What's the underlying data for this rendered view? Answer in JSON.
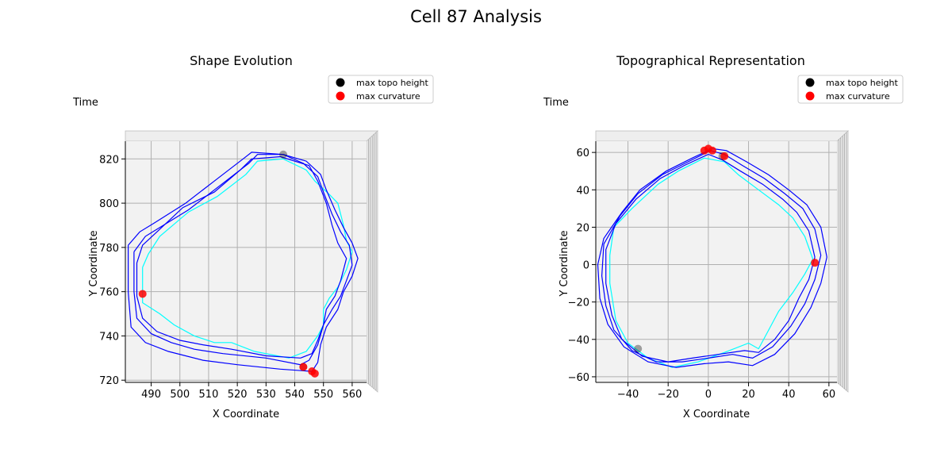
{
  "figure": {
    "title": "Cell 87 Analysis"
  },
  "chart_data": [
    {
      "type": "line",
      "title": "Shape Evolution",
      "xlabel": "X Coordinate",
      "ylabel": "Y Coordinate",
      "zlabel": "Time",
      "xlim": [
        481,
        565
      ],
      "ylim": [
        719,
        828
      ],
      "xticks": [
        490,
        500,
        510,
        520,
        530,
        540,
        550,
        560
      ],
      "yticks": [
        720,
        740,
        760,
        780,
        800,
        820
      ],
      "legend": {
        "placement": "top-right",
        "entries": [
          {
            "label": "max topo height",
            "color": "#000000"
          },
          {
            "label": "max curvature",
            "color": "#ff0000"
          }
        ]
      },
      "series": [
        {
          "color": "#00ffff",
          "points": [
            [
              487,
              771
            ],
            [
              489,
              777
            ],
            [
              493,
              785
            ],
            [
              503,
              796
            ],
            [
              513,
              803
            ],
            [
              523,
              813
            ],
            [
              527,
              819
            ],
            [
              536,
              820
            ],
            [
              544,
              815
            ],
            [
              547,
              810
            ],
            [
              552,
              804
            ],
            [
              555,
              800
            ],
            [
              557,
              790
            ],
            [
              558,
              783
            ],
            [
              560,
              778
            ],
            [
              558,
              770
            ],
            [
              555,
              762
            ],
            [
              552,
              757
            ],
            [
              550,
              752
            ],
            [
              550,
              745
            ],
            [
              548,
              740
            ],
            [
              544,
              733
            ],
            [
              538,
              730
            ],
            [
              526,
              733
            ],
            [
              518,
              737
            ],
            [
              512,
              737
            ],
            [
              505,
              740
            ],
            [
              498,
              745
            ],
            [
              493,
              750
            ],
            [
              487,
              755
            ],
            [
              487,
              765
            ],
            [
              487,
              771
            ]
          ]
        },
        {
          "color": "#0000ff",
          "points": [
            [
              485,
              773
            ],
            [
              487,
              781
            ],
            [
              492,
              787
            ],
            [
              501,
              798
            ],
            [
              512,
              805
            ],
            [
              521,
              815
            ],
            [
              525,
              820
            ],
            [
              535,
              821
            ],
            [
              545,
              817
            ],
            [
              548,
              810
            ],
            [
              551,
              800
            ],
            [
              553,
              790
            ],
            [
              555,
              782
            ],
            [
              558,
              775
            ],
            [
              556,
              765
            ],
            [
              554,
              758
            ],
            [
              551,
              752
            ],
            [
              550,
              745
            ],
            [
              548,
              738
            ],
            [
              546,
              732
            ],
            [
              542,
              730
            ],
            [
              530,
              731
            ],
            [
              518,
              734
            ],
            [
              508,
              736
            ],
            [
              500,
              738
            ],
            [
              492,
              742
            ],
            [
              487,
              748
            ],
            [
              485,
              758
            ],
            [
              485,
              773
            ]
          ]
        },
        {
          "color": "#0000ff",
          "points": [
            [
              484,
              778
            ],
            [
              488,
              785
            ],
            [
              493,
              789
            ],
            [
              503,
              797
            ],
            [
              514,
              808
            ],
            [
              524,
              818
            ],
            [
              527,
              822
            ],
            [
              536,
              822
            ],
            [
              543,
              818
            ],
            [
              548,
              812
            ],
            [
              550,
              805
            ],
            [
              553,
              795
            ],
            [
              556,
              787
            ],
            [
              559,
              781
            ],
            [
              560,
              772
            ],
            [
              558,
              765
            ],
            [
              556,
              758
            ],
            [
              553,
              752
            ],
            [
              550,
              745
            ],
            [
              548,
              736
            ],
            [
              545,
              729
            ],
            [
              542,
              727
            ],
            [
              530,
              730
            ],
            [
              515,
              732
            ],
            [
              505,
              734
            ],
            [
              497,
              737
            ],
            [
              490,
              741
            ],
            [
              485,
              748
            ],
            [
              484,
              760
            ],
            [
              484,
              778
            ]
          ]
        },
        {
          "color": "#0000ff",
          "points": [
            [
              482,
              781
            ],
            [
              486,
              787
            ],
            [
              491,
              791
            ],
            [
              502,
              800
            ],
            [
              512,
              810
            ],
            [
              522,
              820
            ],
            [
              525,
              823
            ],
            [
              536,
              822
            ],
            [
              544,
              819
            ],
            [
              549,
              813
            ],
            [
              551,
              806
            ],
            [
              554,
              797
            ],
            [
              557,
              789
            ],
            [
              560,
              782
            ],
            [
              562,
              775
            ],
            [
              560,
              767
            ],
            [
              557,
              760
            ],
            [
              555,
              752
            ],
            [
              551,
              744
            ],
            [
              549,
              736
            ],
            [
              548,
              728
            ],
            [
              546,
              724
            ],
            [
              535,
              725
            ],
            [
              520,
              727
            ],
            [
              508,
              729
            ],
            [
              496,
              733
            ],
            [
              488,
              737
            ],
            [
              483,
              744
            ],
            [
              482,
              760
            ],
            [
              482,
              781
            ]
          ]
        }
      ],
      "markers": {
        "max_topo_height": [
          [
            536,
            822
          ],
          [
            543,
            726
          ]
        ],
        "max_curvature": [
          [
            487,
            759
          ],
          [
            543,
            726
          ],
          [
            546,
            724
          ],
          [
            547,
            723
          ]
        ]
      }
    },
    {
      "type": "line",
      "title": "Topographical Representation",
      "xlabel": "X Coordinate",
      "ylabel": "Y Coordinate",
      "zlabel": "Time",
      "xlim": [
        -56,
        64
      ],
      "ylim": [
        -63,
        66
      ],
      "xticks": [
        -40,
        -20,
        0,
        20,
        40,
        60
      ],
      "yticks": [
        -60,
        -40,
        -20,
        0,
        20,
        40,
        60
      ],
      "legend": {
        "placement": "top-right",
        "entries": [
          {
            "label": "max topo height",
            "color": "#000000"
          },
          {
            "label": "max curvature",
            "color": "#ff0000"
          }
        ]
      },
      "series": [
        {
          "color": "#00ffff",
          "points": [
            [
              -2,
              57
            ],
            [
              -15,
              50
            ],
            [
              -25,
              43
            ],
            [
              -38,
              30
            ],
            [
              -47,
              20
            ],
            [
              -49,
              5
            ],
            [
              -49,
              -10
            ],
            [
              -46,
              -30
            ],
            [
              -40,
              -42
            ],
            [
              -30,
              -50
            ],
            [
              -18,
              -55
            ],
            [
              -5,
              -52
            ],
            [
              8,
              -47
            ],
            [
              20,
              -42
            ],
            [
              25,
              -45
            ],
            [
              30,
              -35
            ],
            [
              35,
              -25
            ],
            [
              42,
              -15
            ],
            [
              48,
              -5
            ],
            [
              52,
              3
            ],
            [
              48,
              15
            ],
            [
              42,
              25
            ],
            [
              35,
              32
            ],
            [
              25,
              40
            ],
            [
              15,
              48
            ],
            [
              8,
              55
            ],
            [
              -2,
              57
            ]
          ]
        },
        {
          "color": "#0000ff",
          "points": [
            [
              0,
              59
            ],
            [
              -12,
              53
            ],
            [
              -24,
              46
            ],
            [
              -36,
              35
            ],
            [
              -46,
              22
            ],
            [
              -51,
              8
            ],
            [
              -51,
              -10
            ],
            [
              -48,
              -27
            ],
            [
              -43,
              -40
            ],
            [
              -33,
              -49
            ],
            [
              -20,
              -52
            ],
            [
              -8,
              -50
            ],
            [
              5,
              -48
            ],
            [
              18,
              -46
            ],
            [
              25,
              -47
            ],
            [
              33,
              -40
            ],
            [
              40,
              -30
            ],
            [
              45,
              -18
            ],
            [
              50,
              -8
            ],
            [
              53,
              4
            ],
            [
              50,
              18
            ],
            [
              44,
              28
            ],
            [
              37,
              35
            ],
            [
              27,
              43
            ],
            [
              16,
              50
            ],
            [
              7,
              56
            ],
            [
              0,
              59
            ]
          ]
        },
        {
          "color": "#0000ff",
          "points": [
            [
              1,
              61
            ],
            [
              -10,
              55
            ],
            [
              -23,
              48
            ],
            [
              -35,
              38
            ],
            [
              -44,
              26
            ],
            [
              -52,
              11
            ],
            [
              -53,
              -6
            ],
            [
              -51,
              -22
            ],
            [
              -47,
              -35
            ],
            [
              -38,
              -46
            ],
            [
              -26,
              -52
            ],
            [
              -13,
              -52
            ],
            [
              0,
              -50
            ],
            [
              12,
              -48
            ],
            [
              22,
              -50
            ],
            [
              32,
              -44
            ],
            [
              41,
              -33
            ],
            [
              48,
              -21
            ],
            [
              53,
              -8
            ],
            [
              56,
              5
            ],
            [
              53,
              19
            ],
            [
              47,
              30
            ],
            [
              38,
              38
            ],
            [
              28,
              46
            ],
            [
              17,
              53
            ],
            [
              8,
              59
            ],
            [
              1,
              61
            ]
          ]
        },
        {
          "color": "#0000ff",
          "points": [
            [
              2,
              62
            ],
            [
              -8,
              57
            ],
            [
              -21,
              50
            ],
            [
              -34,
              40
            ],
            [
              -43,
              28
            ],
            [
              -52,
              14
            ],
            [
              -55,
              0
            ],
            [
              -54,
              -18
            ],
            [
              -50,
              -32
            ],
            [
              -42,
              -44
            ],
            [
              -30,
              -52
            ],
            [
              -16,
              -55
            ],
            [
              -2,
              -53
            ],
            [
              10,
              -52
            ],
            [
              22,
              -54
            ],
            [
              33,
              -48
            ],
            [
              43,
              -37
            ],
            [
              51,
              -23
            ],
            [
              56,
              -10
            ],
            [
              59,
              4
            ],
            [
              56,
              20
            ],
            [
              49,
              32
            ],
            [
              40,
              40
            ],
            [
              30,
              48
            ],
            [
              19,
              55
            ],
            [
              9,
              61
            ],
            [
              2,
              62
            ]
          ]
        }
      ],
      "markers": {
        "max_topo_height": [
          [
            7,
            58
          ],
          [
            -35,
            -45
          ]
        ],
        "max_curvature": [
          [
            -2,
            61
          ],
          [
            0,
            62
          ],
          [
            2,
            61
          ],
          [
            8,
            58
          ],
          [
            53,
            1
          ]
        ]
      }
    }
  ]
}
